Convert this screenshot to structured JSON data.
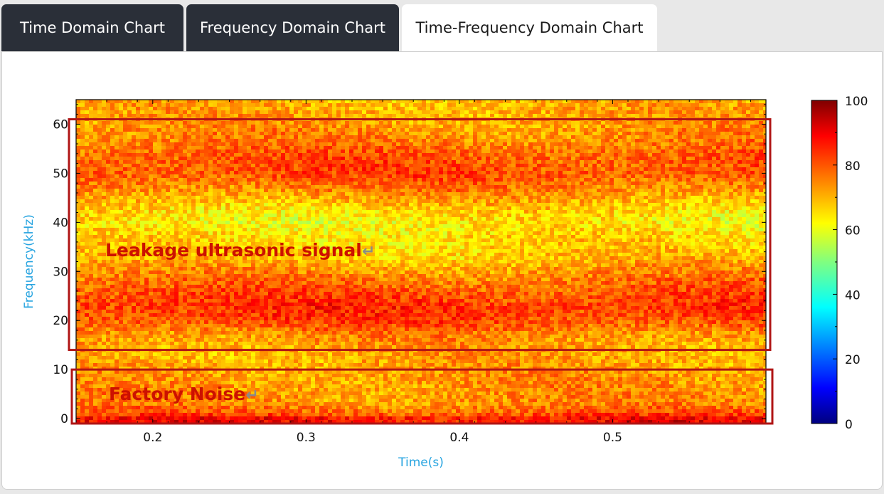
{
  "tabs": [
    {
      "label": "Time Domain Chart",
      "active": false
    },
    {
      "label": "Frequency Domain Chart",
      "active": false
    },
    {
      "label": "Time-Frequency Domain Chart",
      "active": true
    }
  ],
  "colors": {
    "tab_dark": "#2a2f38",
    "axis_label": "#27a4e0",
    "annotation": "#cc1100",
    "box": "#b01515"
  },
  "chart_data": {
    "type": "heatmap",
    "title": "",
    "xlabel": "Time(s)",
    "ylabel": "Frequency(kHz)",
    "xlim": [
      0.15,
      0.6
    ],
    "ylim": [
      -1,
      65
    ],
    "xticks": [
      0.2,
      0.3,
      0.4,
      0.5
    ],
    "yticks": [
      0,
      10,
      20,
      30,
      40,
      50,
      60
    ],
    "colorbar": {
      "min": 0,
      "max": 100,
      "ticks": [
        0,
        20,
        40,
        60,
        80,
        100
      ],
      "colormap": "jet"
    },
    "intensity_profile": {
      "frequency_khz": [
        0,
        1,
        3,
        8,
        13,
        17,
        20,
        23,
        27,
        33,
        37,
        40,
        43,
        47,
        50,
        53,
        57,
        61,
        65
      ],
      "level": [
        88,
        80,
        74,
        73,
        71,
        74,
        82,
        84,
        79,
        68,
        66,
        63,
        67,
        76,
        81,
        80,
        75,
        72,
        70
      ]
    },
    "annotations": [
      {
        "text": "Leakage ultrasonic signal",
        "freq_range_khz": [
          14,
          61
        ],
        "time_range_s": [
          0.15,
          0.6
        ]
      },
      {
        "text": "Factory Noise",
        "freq_range_khz": [
          -1,
          10
        ],
        "time_range_s": [
          0.15,
          0.6
        ]
      }
    ],
    "return_symbol": "↵"
  }
}
